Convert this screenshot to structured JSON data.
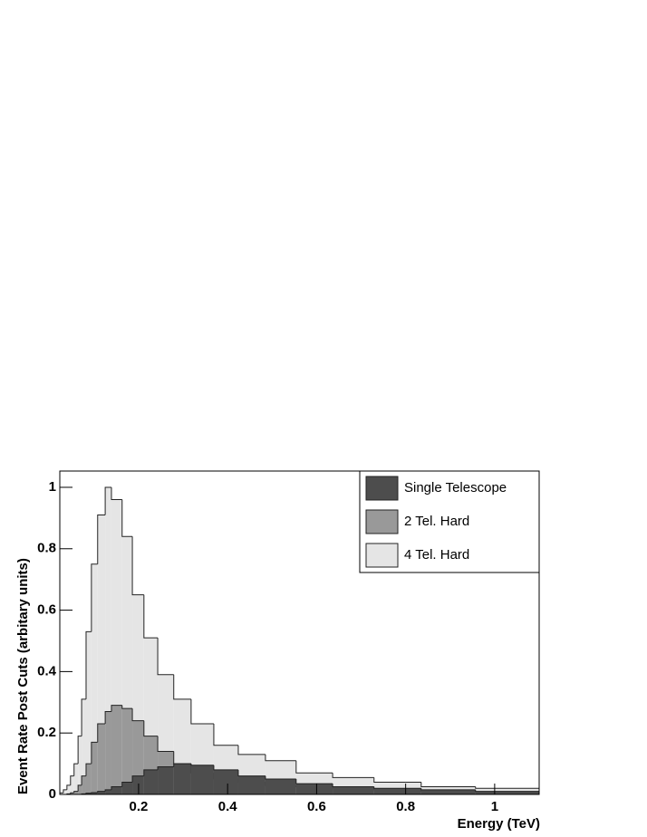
{
  "chart_data": {
    "type": "histogram",
    "xlabel": "Energy (TeV)",
    "ylabel": "Event Rate Post Cuts (arbitary units)",
    "bins": [
      0.023,
      0.031,
      0.039,
      0.047,
      0.055,
      0.064,
      0.072,
      0.082,
      0.094,
      0.108,
      0.125,
      0.139,
      0.163,
      0.186,
      0.212,
      0.243,
      0.279,
      0.318,
      0.369,
      0.424,
      0.485,
      0.554,
      0.636,
      0.729,
      0.835,
      0.957,
      1.1
    ],
    "series": [
      {
        "name": "4 Tel. Hard",
        "color": "#e5e5e5",
        "values": [
          0.005,
          0.015,
          0.03,
          0.06,
          0.1,
          0.19,
          0.31,
          0.53,
          0.75,
          0.91,
          1.0,
          0.96,
          0.84,
          0.65,
          0.51,
          0.39,
          0.31,
          0.23,
          0.16,
          0.13,
          0.11,
          0.07,
          0.055,
          0.04,
          0.025,
          0.02
        ]
      },
      {
        "name": "2 Tel. Hard",
        "color": "#999999",
        "values": [
          0,
          0,
          0.002,
          0.005,
          0.01,
          0.03,
          0.06,
          0.1,
          0.17,
          0.23,
          0.27,
          0.29,
          0.28,
          0.24,
          0.19,
          0.14,
          0.1,
          0.07,
          0.05,
          0.04,
          0.03,
          0.025,
          0.02,
          0.015,
          0.01,
          0.008
        ]
      },
      {
        "name": "Single Telescope",
        "color": "#4d4d4d",
        "values": [
          0,
          0,
          0,
          0,
          0,
          0,
          0.002,
          0.004,
          0.006,
          0.01,
          0.015,
          0.025,
          0.04,
          0.06,
          0.08,
          0.09,
          0.1,
          0.095,
          0.08,
          0.06,
          0.05,
          0.035,
          0.025,
          0.02,
          0.015,
          0.01
        ]
      }
    ],
    "legend_order": [
      "Single Telescope",
      "2 Tel. Hard",
      "4 Tel. Hard"
    ],
    "legend": "upper right",
    "xlim": [
      0.023,
      1.1
    ],
    "xticks": [
      0.2,
      0.4,
      0.6,
      0.8,
      1
    ],
    "ylim": [
      0,
      1.053
    ],
    "yticks": [
      0,
      0.2,
      0.4,
      0.6,
      0.8,
      1
    ]
  }
}
